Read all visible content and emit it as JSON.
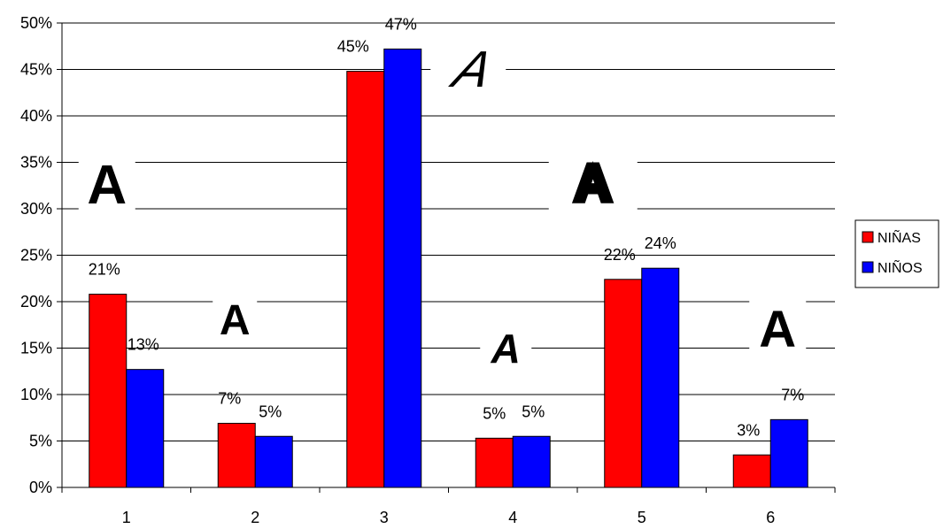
{
  "chart_data": {
    "type": "bar",
    "categories": [
      "1",
      "2",
      "3",
      "4",
      "5",
      "6"
    ],
    "series": [
      {
        "name": "NIÑAS",
        "color": "#ff0000",
        "values": [
          21,
          7,
          45,
          5,
          22,
          3
        ],
        "labels": [
          "21%",
          "7%",
          "45%",
          "5%",
          "22%",
          "3%"
        ],
        "bar_values": [
          20.8,
          6.9,
          44.8,
          5.3,
          22.4,
          3.5
        ]
      },
      {
        "name": "NIÑOS",
        "color": "#0000ff",
        "values": [
          13,
          5,
          47,
          5,
          24,
          7
        ],
        "labels": [
          "13%",
          "5%",
          "47%",
          "5%",
          "24%",
          "7%"
        ],
        "bar_values": [
          12.7,
          5.5,
          47.2,
          5.5,
          23.6,
          7.3
        ]
      }
    ],
    "y_ticks": [
      "0%",
      "5%",
      "10%",
      "15%",
      "20%",
      "25%",
      "30%",
      "35%",
      "40%",
      "45%",
      "50%"
    ],
    "ylim": [
      0,
      50
    ],
    "grid": true,
    "legend_position": "right",
    "decorations": [
      {
        "text": "A",
        "category": "1",
        "style": "bold-sans"
      },
      {
        "text": "A",
        "category": "2",
        "style": "rounded-script"
      },
      {
        "text": "A",
        "category": "3",
        "style": "calligraphic-script"
      },
      {
        "text": "A",
        "category": "4",
        "style": "handwritten"
      },
      {
        "text": "A",
        "category": "5",
        "style": "outlined-block"
      },
      {
        "text": "A",
        "category": "6",
        "style": "bold-serif"
      }
    ]
  }
}
